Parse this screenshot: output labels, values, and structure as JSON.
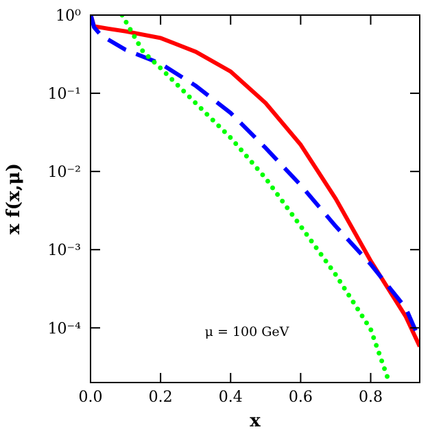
{
  "chart_data": {
    "type": "line",
    "xlabel": "x",
    "ylabel": "x f(x,μ)",
    "annotation": "μ = 100 GeV",
    "xlim": [
      0,
      0.94
    ],
    "xticks": [
      {
        "value": 0,
        "label": "0.0"
      },
      0.2,
      0.4,
      0.6,
      0.8
    ],
    "ylim": [
      2e-05,
      1
    ],
    "ylog": true,
    "yticks": [
      {
        "value": 1,
        "label": "10⁰"
      },
      {
        "value": 0.1,
        "label": "10⁻¹"
      },
      {
        "value": 0.01,
        "label": "10⁻²"
      },
      {
        "value": 0.001,
        "label": "10⁻³"
      },
      {
        "value": 0.0001,
        "label": "10⁻⁴"
      }
    ],
    "series": [
      {
        "color": "#ff0000",
        "style": "solid",
        "x": [
          0.001,
          0.01,
          0.05,
          0.1,
          0.2,
          0.3,
          0.4,
          0.5,
          0.6,
          0.7,
          0.8,
          0.9,
          0.94
        ],
        "values": [
          1.0,
          0.72,
          0.67,
          0.62,
          0.51,
          0.34,
          0.19,
          0.075,
          0.022,
          0.0045,
          0.00072,
          0.00014,
          5.8e-05
        ]
      },
      {
        "color": "#0000ff",
        "style": "dashed",
        "x": [
          0.001,
          0.01,
          0.03,
          0.1,
          0.2,
          0.3,
          0.4,
          0.5,
          0.6,
          0.7,
          0.8,
          0.9,
          0.94
        ],
        "values": [
          1.0,
          0.7,
          0.55,
          0.36,
          0.24,
          0.125,
          0.056,
          0.02,
          0.0067,
          0.002,
          0.00065,
          0.00018,
          7e-05
        ]
      },
      {
        "color": "#00ff00",
        "style": "dotted",
        "x": [
          0.09,
          0.15,
          0.2,
          0.3,
          0.4,
          0.5,
          0.6,
          0.7,
          0.8,
          0.85
        ],
        "values": [
          1.0,
          0.34,
          0.21,
          0.075,
          0.027,
          0.0082,
          0.002,
          0.00048,
          9.6e-05,
          2.2e-05
        ]
      }
    ]
  }
}
